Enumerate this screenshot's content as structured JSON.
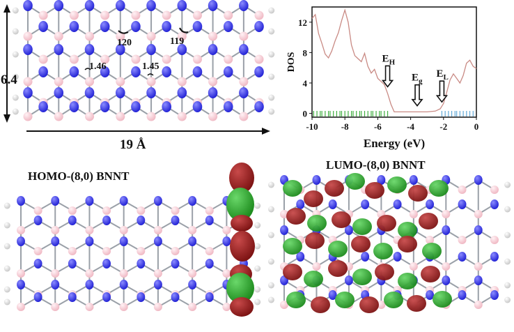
{
  "colors": {
    "nitrogen": "#2424d6",
    "boron": "#f0b9c4",
    "hydrogen": "#c8c8c8",
    "bond": "#9aa0a8",
    "orbital_pos": "#7e1414",
    "orbital_neg": "#1e8c1e",
    "dos_line": "#c98a84",
    "occupied_ticks": "#3fae3f",
    "virtual_ticks": "#5fa8d6"
  },
  "structure": {
    "dim_height": "6.4",
    "dim_length": "19 Å",
    "angle_1": "120",
    "angle_2": "119",
    "bond_1": "1.46",
    "bond_2": "1.45"
  },
  "homo": {
    "title": "HOMO-(8,0) BNNT"
  },
  "lumo": {
    "title": "LUMO-(8,0) BNNT"
  },
  "chart_data": {
    "type": "line",
    "xlabel": "Energy (eV)",
    "ylabel": "DOS",
    "xlim": [
      -10,
      0
    ],
    "ylim": [
      -0.5,
      14
    ],
    "xticks": [
      "-10",
      "-8",
      "-6",
      "-4",
      "-2",
      "0"
    ],
    "yticks": [
      "0",
      "4",
      "8",
      "12"
    ],
    "x": [
      -10,
      -9.8,
      -9.6,
      -9.4,
      -9.2,
      -9.0,
      -8.8,
      -8.6,
      -8.4,
      -8.2,
      -8.0,
      -7.8,
      -7.6,
      -7.4,
      -7.2,
      -7.0,
      -6.8,
      -6.6,
      -6.4,
      -6.2,
      -6.0,
      -5.8,
      -5.6,
      -5.4,
      -5.2,
      -5.0,
      -4.5,
      -4.0,
      -3.5,
      -3.0,
      -2.5,
      -2.2,
      -2.0,
      -1.8,
      -1.6,
      -1.4,
      -1.2,
      -1.0,
      -0.8,
      -0.6,
      -0.4,
      -0.2,
      0
    ],
    "y": [
      12.5,
      13.0,
      10.5,
      9.2,
      7.8,
      7.3,
      8.2,
      9.5,
      10.6,
      12.2,
      13.6,
      12.0,
      9.0,
      7.6,
      7.2,
      6.8,
      7.9,
      6.2,
      5.3,
      5.8,
      4.6,
      4.2,
      3.8,
      2.6,
      1.2,
      0.2,
      0.2,
      0.2,
      0.2,
      0.2,
      0.3,
      0.6,
      1.3,
      2.8,
      4.4,
      5.2,
      4.6,
      4.0,
      5.0,
      6.6,
      7.0,
      6.2,
      5.9
    ],
    "occupied_levels": [
      -9.9,
      -9.7,
      -9.5,
      -9.4,
      -9.2,
      -9.0,
      -8.9,
      -8.7,
      -8.5,
      -8.3,
      -8.2,
      -8.0,
      -7.8,
      -7.6,
      -7.5,
      -7.3,
      -7.1,
      -7.0,
      -6.8,
      -6.6,
      -6.4,
      -6.3,
      -6.1,
      -5.9,
      -5.8,
      -5.6,
      -5.4
    ],
    "virtual_levels": [
      -2.1,
      -1.9,
      -1.7,
      -1.5,
      -1.3,
      -1.2,
      -1.0,
      -0.8,
      -0.6,
      -0.4,
      -0.2
    ],
    "annotations": [
      {
        "base": "E",
        "sub": "H",
        "x": -5.4,
        "y": 3.5
      },
      {
        "base": "E",
        "sub": "g",
        "x": -3.6,
        "y": 1.0
      },
      {
        "base": "E",
        "sub": "L",
        "x": -2.1,
        "y": 1.5
      }
    ]
  }
}
